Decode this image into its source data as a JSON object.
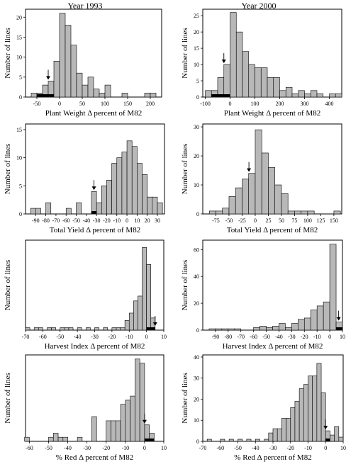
{
  "columns": [
    {
      "title": "Year 1993"
    },
    {
      "title": "Year 2000"
    }
  ],
  "colors": {
    "bar": "#b8b8b8",
    "marker": "#000000",
    "axis": "#000000"
  },
  "chart_data": [
    {
      "type": "bar",
      "title": "",
      "column": "Year 1993",
      "xlabel": "Plant Weight Δ percent of M82",
      "ylabel": "Number of lines",
      "xlim": [
        -75,
        225
      ],
      "ylim": [
        0,
        22
      ],
      "xticks": [
        -50,
        0,
        50,
        100,
        150,
        200
      ],
      "yticks": [
        0,
        5,
        10,
        15,
        20
      ],
      "bin_width": 12.5,
      "bins": [
        -62.5,
        -50,
        -37.5,
        -25,
        -12.5,
        0,
        12.5,
        25,
        37.5,
        50,
        62.5,
        75,
        87.5,
        100,
        112.5,
        125,
        137.5,
        150,
        162.5,
        175,
        187.5,
        200
      ],
      "values": [
        1,
        1,
        3,
        4,
        9,
        21,
        18,
        13,
        6,
        3,
        5,
        2,
        1,
        3,
        0,
        0,
        1,
        0,
        0,
        0,
        1,
        1
      ],
      "highlight": [
        0,
        1,
        1,
        1,
        0,
        0,
        0,
        0,
        0,
        0,
        0,
        0,
        0,
        0,
        0,
        0,
        0,
        0,
        0,
        0,
        0,
        0
      ],
      "arrow_x": -25
    },
    {
      "type": "bar",
      "title": "",
      "column": "Year 2000",
      "xlabel": "Plant Weight Δ percent of M82",
      "ylabel": "Number of lines",
      "xlim": [
        -110,
        450
      ],
      "ylim": [
        0,
        27
      ],
      "xticks": [
        -100,
        0,
        100,
        200,
        300,
        400
      ],
      "yticks": [
        0,
        5,
        10,
        15,
        20,
        25
      ],
      "bin_width": 25,
      "bins": [
        -100,
        -75,
        -50,
        -25,
        0,
        25,
        50,
        75,
        100,
        125,
        150,
        175,
        200,
        225,
        250,
        275,
        300,
        325,
        350,
        375,
        400,
        425
      ],
      "values": [
        2,
        2,
        6,
        10,
        26,
        20,
        14,
        10,
        9,
        9,
        6,
        6,
        2,
        3,
        1,
        2,
        1,
        2,
        1,
        0,
        1,
        1
      ],
      "highlight": [
        0,
        1,
        1,
        1,
        0,
        0,
        0,
        0,
        0,
        0,
        0,
        0,
        0,
        0,
        0,
        0,
        0,
        0,
        0,
        0,
        0,
        0
      ],
      "arrow_x": -25
    },
    {
      "type": "bar",
      "title": "",
      "column": "Year 1993",
      "xlabel": "Total Yield Δ percent of M82",
      "ylabel": "Number of lines",
      "xlim": [
        -100,
        37
      ],
      "ylim": [
        0,
        16
      ],
      "xticks": [
        -90,
        -80,
        -70,
        -60,
        -50,
        -40,
        -30,
        -20,
        -10,
        0,
        10,
        20,
        30
      ],
      "yticks": [
        0,
        5,
        10,
        15
      ],
      "bin_width": 5,
      "bins": [
        -95,
        -90,
        -85,
        -80,
        -75,
        -70,
        -65,
        -60,
        -55,
        -50,
        -45,
        -40,
        -35,
        -30,
        -25,
        -20,
        -15,
        -10,
        -5,
        0,
        5,
        10,
        15,
        20,
        25,
        30
      ],
      "values": [
        1,
        1,
        0,
        2,
        0,
        0,
        0,
        1,
        0,
        2,
        0,
        0,
        4,
        2,
        5,
        6,
        9,
        10,
        11,
        13,
        12,
        9,
        7,
        3,
        3,
        2
      ],
      "highlight": [
        0,
        0,
        0,
        0,
        0,
        0,
        0,
        0,
        0,
        0,
        0,
        0,
        1,
        0,
        0,
        0,
        0,
        0,
        0,
        0,
        0,
        0,
        0,
        0,
        0,
        0
      ],
      "arrow_x": -32.5
    },
    {
      "type": "bar",
      "title": "",
      "column": "Year 2000",
      "xlabel": "Total Yield Δ percent of M82",
      "ylabel": "Number of lines",
      "xlim": [
        -100,
        165
      ],
      "ylim": [
        0,
        31
      ],
      "xticks": [
        -75,
        -50,
        -25,
        0,
        25,
        50,
        75,
        100,
        125,
        150
      ],
      "yticks": [
        0,
        10,
        20,
        30
      ],
      "bin_width": 12.5,
      "bins": [
        -87.5,
        -75,
        -62.5,
        -50,
        -37.5,
        -25,
        -12.5,
        0,
        12.5,
        25,
        37.5,
        50,
        62.5,
        75,
        87.5,
        100,
        112.5,
        125,
        137.5,
        150
      ],
      "values": [
        1,
        1,
        2,
        6,
        9,
        12,
        14,
        29,
        21,
        16,
        10,
        7,
        1,
        1,
        1,
        1,
        0,
        0,
        0,
        1
      ],
      "highlight": [
        0,
        0,
        0,
        0,
        0,
        0,
        0,
        0,
        0,
        0,
        0,
        0,
        0,
        0,
        0,
        0,
        0,
        0,
        0,
        0
      ],
      "arrow_x": -12
    },
    {
      "type": "bar",
      "title": "",
      "column": "Year 1993",
      "xlabel": "Harvest Index Δ percent of M82",
      "ylabel": "Number of lines",
      "xlim": [
        -70,
        10
      ],
      "ylim": [
        0,
        37
      ],
      "xticks": [
        -70,
        -60,
        -50,
        -40,
        -30,
        -20,
        -10,
        0,
        10
      ],
      "yticks": [],
      "bin_width": 2.5,
      "bins": [
        -70,
        -65,
        -62.5,
        -57.5,
        -55,
        -50,
        -47.5,
        -45,
        -40,
        -35,
        -30,
        -25,
        -20,
        -17.5,
        -15,
        -12.5,
        -10,
        -7.5,
        -5,
        -2.5,
        0,
        2.5
      ],
      "values": [
        1,
        1,
        1,
        1,
        1,
        1,
        1,
        1,
        1,
        1,
        1,
        1,
        1,
        1,
        1,
        4,
        7,
        12,
        14,
        34,
        27,
        5
      ],
      "highlight": [
        0,
        0,
        0,
        0,
        0,
        0,
        0,
        0,
        0,
        0,
        0,
        0,
        0,
        0,
        0,
        0,
        0,
        0,
        0,
        0,
        1,
        1
      ],
      "arrow_x": 5
    },
    {
      "type": "bar",
      "title": "",
      "column": "Year 2000",
      "xlabel": "Harvest Index Δ percent of M82",
      "ylabel": "Number of lines",
      "xlim": [
        -100,
        10
      ],
      "ylim": [
        0,
        67
      ],
      "xticks": [
        -90,
        -80,
        -70,
        -60,
        -50,
        -40,
        -30,
        -20,
        -10,
        0,
        10
      ],
      "yticks": [
        0,
        20,
        40,
        60
      ],
      "bin_width": 5,
      "bins": [
        -95,
        -90,
        -85,
        -80,
        -75,
        -70,
        -65,
        -60,
        -55,
        -50,
        -45,
        -40,
        -35,
        -30,
        -25,
        -20,
        -15,
        -10,
        -5,
        0,
        5
      ],
      "values": [
        1,
        1,
        1,
        1,
        1,
        0,
        0,
        2,
        3,
        2,
        3,
        5,
        2,
        5,
        8,
        9,
        15,
        18,
        21,
        64,
        6
      ],
      "highlight": [
        0,
        0,
        0,
        0,
        0,
        0,
        0,
        0,
        0,
        0,
        0,
        0,
        0,
        0,
        0,
        0,
        0,
        0,
        0,
        0,
        1
      ],
      "arrow_x": 7
    },
    {
      "type": "bar",
      "title": "",
      "column": "Year 1993",
      "xlabel": "% Red Δ percent of M82",
      "ylabel": "Number of lines",
      "xlim": [
        -62,
        10
      ],
      "ylim": [
        0,
        21
      ],
      "xticks": [
        -60,
        -50,
        -40,
        -30,
        -20,
        -10,
        0,
        10
      ],
      "yticks": [],
      "bin_width": 2.5,
      "bins": [
        -62.5,
        -50,
        -47.5,
        -45,
        -42.5,
        -35,
        -27.5,
        -20,
        -17.5,
        -15,
        -12.5,
        -10,
        -7.5,
        -5,
        -2.5,
        0,
        2.5
      ],
      "values": [
        1,
        1,
        2,
        1,
        1,
        1,
        6,
        5,
        5,
        5,
        9,
        10,
        11,
        20,
        19,
        4,
        2
      ],
      "highlight": [
        0,
        0,
        0,
        0,
        0,
        0,
        0,
        0,
        0,
        0,
        0,
        0,
        0,
        0,
        0,
        1,
        1
      ],
      "arrow_x": 0
    },
    {
      "type": "bar",
      "title": "",
      "column": "Year 2000",
      "xlabel": "% Red Δ percent of M82",
      "ylabel": "Number of lines",
      "xlim": [
        -70,
        10
      ],
      "ylim": [
        0,
        41
      ],
      "xticks": [
        -70,
        -60,
        -50,
        -40,
        -30,
        -20,
        -10,
        0,
        10
      ],
      "yticks": [
        0,
        10,
        20,
        30,
        40
      ],
      "bin_width": 2.5,
      "bins": [
        -67.5,
        -60,
        -55,
        -50,
        -45,
        -40,
        -35,
        -32.5,
        -30,
        -27.5,
        -25,
        -22.5,
        -20,
        -17.5,
        -15,
        -12.5,
        -10,
        -7.5,
        -5,
        -2.5,
        0,
        2.5,
        5,
        7.5
      ],
      "values": [
        1,
        1,
        1,
        1,
        1,
        1,
        1,
        4,
        6,
        6,
        11,
        11,
        16,
        19,
        25,
        27,
        31,
        31,
        37,
        23,
        5,
        3,
        7,
        2
      ],
      "highlight": [
        0,
        0,
        0,
        0,
        0,
        0,
        0,
        0,
        0,
        0,
        0,
        0,
        0,
        0,
        0,
        0,
        0,
        0,
        0,
        0,
        1,
        0,
        0,
        0
      ],
      "arrow_x": 0
    }
  ]
}
